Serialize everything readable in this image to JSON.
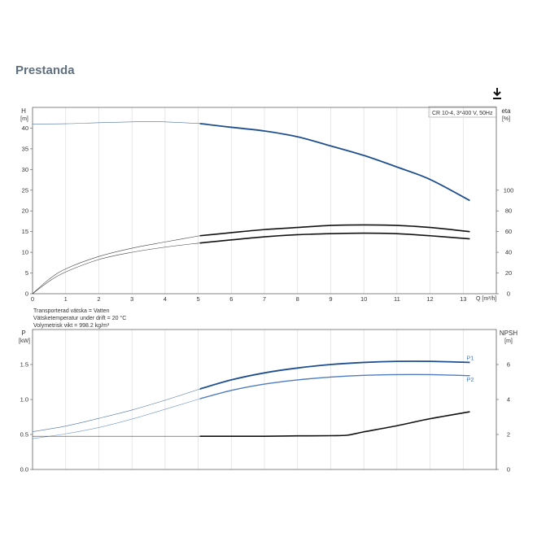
{
  "page": {
    "title": "Prestanda"
  },
  "colors": {
    "blue": "#1f4f8f",
    "lightblue": "#4f7cc0",
    "black": "#111111",
    "thin": "#888888",
    "grid": "#dddddd"
  },
  "icons": {
    "download": "download-icon"
  },
  "chart_data": [
    {
      "type": "line",
      "name": "head-efficiency",
      "legend_box": "CR 10-4, 3*400 V, 50Hz",
      "xlabel": "Q [m³/h]",
      "ylabel_left_1": "H",
      "ylabel_left_2": "[m]",
      "ylabel_right_1": "eta",
      "ylabel_right_2": "[%]",
      "xlim": [
        0,
        14
      ],
      "ylim_left": [
        0,
        45
      ],
      "ylim_right": [
        0,
        180
      ],
      "x_ticks": [
        "0",
        "1",
        "2",
        "3",
        "4",
        "5",
        "6",
        "7",
        "8",
        "9",
        "10",
        "11",
        "12",
        "13"
      ],
      "y_ticks_left": [
        "0",
        "5",
        "10",
        "15",
        "20",
        "25",
        "30",
        "35",
        "40"
      ],
      "y_ticks_right": [
        "0",
        "20",
        "40",
        "60",
        "80",
        "100"
      ],
      "grid": true,
      "notes": [
        "Transporterad vätska = Vatten",
        "Vätsketemperatur under drift = 20 °C",
        "Volymetrisk vikt = 998.2 kg/m³"
      ],
      "series": [
        {
          "key": "H",
          "axis": "left",
          "x": [
            0,
            1,
            2,
            3,
            3.5,
            4,
            5.05,
            6,
            7,
            8,
            9,
            10,
            11,
            12,
            13.2
          ],
          "y": [
            41,
            41.05,
            41.3,
            41.5,
            41.6,
            41.5,
            41.1,
            40.2,
            39.3,
            37.9,
            35.7,
            33.4,
            30.6,
            27.6,
            22.5
          ],
          "thin_until": 5.05
        },
        {
          "key": "eta1",
          "axis": "right",
          "x": [
            0,
            0.5,
            1,
            2,
            3,
            4,
            5.05,
            6,
            7,
            8,
            9,
            10,
            11,
            12,
            13.2
          ],
          "y": [
            0,
            14,
            24,
            36,
            44,
            50,
            56,
            59,
            62,
            64,
            66,
            66.5,
            66,
            64,
            60
          ],
          "thin_until": 5.05
        },
        {
          "key": "eta2",
          "axis": "right",
          "x": [
            0,
            0.5,
            1,
            2,
            3,
            4,
            5.05,
            6,
            7,
            8,
            9,
            10,
            11,
            12,
            13.2
          ],
          "y": [
            0,
            12,
            21,
            33,
            40,
            45,
            49,
            52,
            55,
            57,
            58,
            58.5,
            58,
            56,
            53
          ],
          "thin_until": 5.05
        }
      ]
    },
    {
      "type": "line",
      "name": "power-npsh",
      "ylabel_left_1": "P",
      "ylabel_left_2": "[kW]",
      "ylabel_right_1": "NPSH",
      "ylabel_right_2": "[m]",
      "xlim": [
        0,
        14
      ],
      "ylim_left": [
        0,
        2
      ],
      "ylim_right": [
        0,
        8
      ],
      "y_ticks_left": [
        "0.0",
        "0.5",
        "1.0",
        "1.5"
      ],
      "y_ticks_right": [
        "0",
        "2",
        "4",
        "6"
      ],
      "grid": true,
      "series": [
        {
          "name": "P1",
          "key": "P1",
          "axis": "left",
          "x": [
            0,
            1,
            2,
            3,
            4,
            5.05,
            6,
            7,
            8,
            9,
            10,
            11,
            12,
            13.2
          ],
          "y": [
            0.54,
            0.62,
            0.73,
            0.85,
            0.99,
            1.15,
            1.28,
            1.38,
            1.45,
            1.5,
            1.53,
            1.545,
            1.545,
            1.53
          ],
          "thin_until": 5.05
        },
        {
          "name": "P2",
          "key": "P2",
          "axis": "left",
          "x": [
            0,
            1,
            2,
            3,
            4,
            5.05,
            6,
            7,
            8,
            9,
            10,
            11,
            12,
            13.2
          ],
          "y": [
            0.44,
            0.51,
            0.6,
            0.72,
            0.86,
            1.01,
            1.13,
            1.22,
            1.28,
            1.32,
            1.345,
            1.355,
            1.355,
            1.34
          ],
          "thin_until": 5.05
        },
        {
          "key": "NPSH",
          "axis": "right",
          "x": [
            0,
            1,
            2,
            3,
            4,
            5.05,
            6,
            7,
            8,
            9,
            9.5,
            10,
            11,
            12,
            13.2
          ],
          "y": [
            1.9,
            1.9,
            1.9,
            1.9,
            1.9,
            1.9,
            1.9,
            1.9,
            1.92,
            1.93,
            1.96,
            2.15,
            2.5,
            2.9,
            3.3
          ],
          "thin_until": 5.05
        }
      ]
    }
  ]
}
